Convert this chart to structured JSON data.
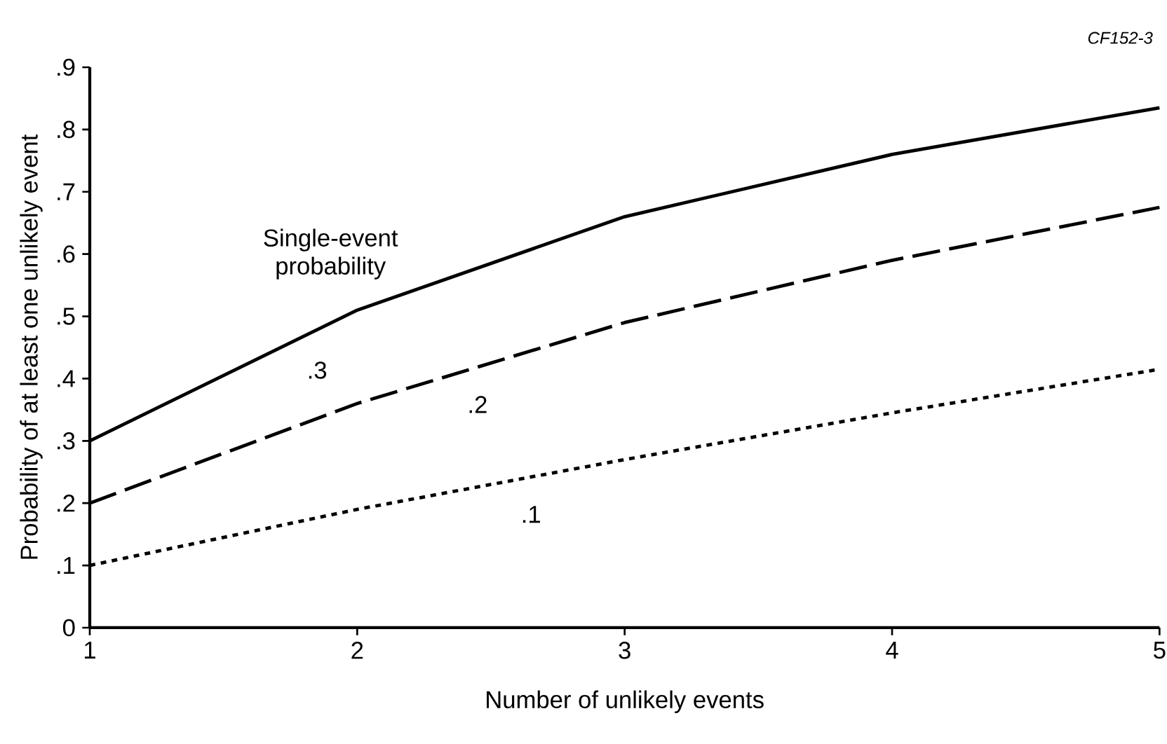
{
  "chart_data": {
    "type": "line",
    "xlabel": "Number of unlikely events",
    "ylabel": "Probability of at least one unlikely event",
    "x": [
      1,
      2,
      3,
      4,
      5
    ],
    "series": [
      {
        "name": ".3",
        "color": "#000000",
        "line_style": "solid",
        "values": [
          0.3,
          0.51,
          0.66,
          0.76,
          0.835
        ]
      },
      {
        "name": ".2",
        "color": "#000000",
        "line_style": "dashed",
        "values": [
          0.2,
          0.36,
          0.49,
          0.59,
          0.675
        ]
      },
      {
        "name": ".1",
        "color": "#000000",
        "line_style": "dotted",
        "values": [
          0.1,
          0.19,
          0.27,
          0.345,
          0.415
        ]
      }
    ],
    "xlim": [
      1,
      5
    ],
    "ylim": [
      0,
      0.9
    ],
    "xticks": [
      1,
      2,
      3,
      4,
      5
    ],
    "yticks": [
      0,
      {
        "value": 0.1,
        "label": ".1"
      },
      {
        "value": 0.2,
        "label": ".2"
      },
      {
        "value": 0.3,
        "label": ".3"
      },
      {
        "value": 0.4,
        "label": ".4"
      },
      {
        "value": 0.5,
        "label": ".5"
      },
      {
        "value": 0.6,
        "label": ".6"
      },
      {
        "value": 0.7,
        "label": ".7"
      },
      {
        "value": 0.8,
        "label": ".8"
      },
      {
        "value": 0.9,
        "label": ".9"
      }
    ],
    "annotations": [
      "CF152-3",
      "Single-event probability"
    ]
  }
}
